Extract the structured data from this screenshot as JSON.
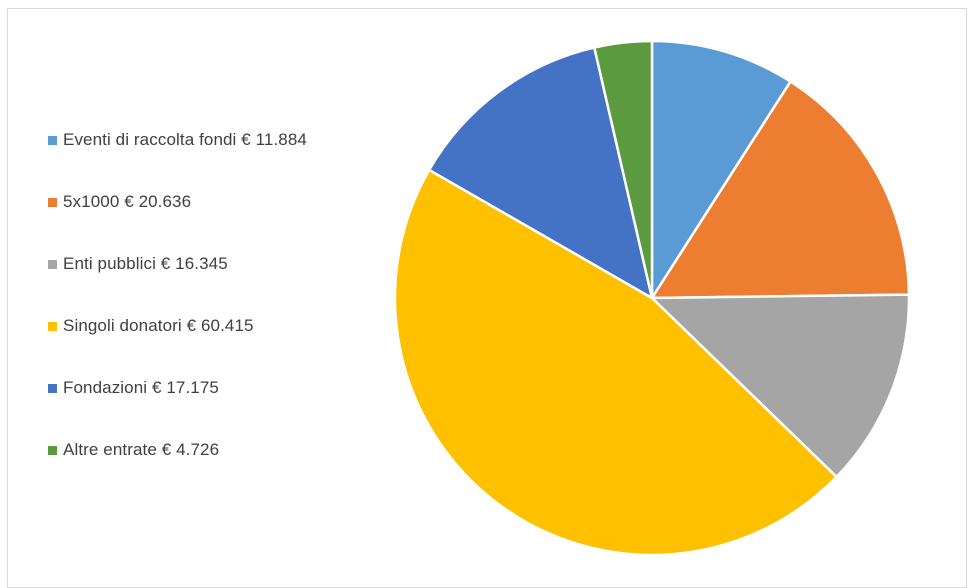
{
  "chart_data": {
    "type": "pie",
    "title": "",
    "legend_position": "left",
    "slices": [
      {
        "label": "Eventi di raccolta fondi € 11.884",
        "value": 11884,
        "color": "#5b9bd5"
      },
      {
        "label": "5x1000 € 20.636",
        "value": 20636,
        "color": "#ed7d31"
      },
      {
        "label": "Enti pubblici € 16.345",
        "value": 16345,
        "color": "#a5a5a5"
      },
      {
        "label": "Singoli donatori € 60.415",
        "value": 60415,
        "color": "#ffc000"
      },
      {
        "label": "Fondazioni € 17.175",
        "value": 17175,
        "color": "#4472c4"
      },
      {
        "label": "Altre entrate € 4.726",
        "value": 4726,
        "color": "#5b9a3e"
      }
    ]
  }
}
